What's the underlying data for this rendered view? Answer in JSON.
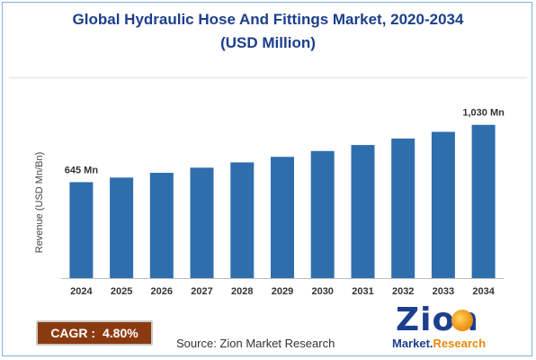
{
  "title_line1": "Global Hydraulic Hose And Fittings Market, 2020-2034",
  "title_line2": "(USD Million)",
  "ylabel": "Revenue (USD Mn/Bn)",
  "cagr": {
    "label": "CAGR :",
    "value": "4.80%"
  },
  "source": "Source: Zion Market Research",
  "logo": {
    "word": "Zion",
    "sub_a": "Market.",
    "sub_b": "Research",
    "icon": "globe-icon"
  },
  "colors": {
    "bar": "#2f6ead",
    "title": "#1b3f8c",
    "cagr_bg": "#8b3a10"
  },
  "chart_data": {
    "type": "bar",
    "title": "Global Hydraulic Hose And Fittings Market, 2020-2034 (USD Million)",
    "ylabel": "Revenue (USD Mn/Bn)",
    "xlabel": "",
    "categories": [
      "2024",
      "2025",
      "2026",
      "2027",
      "2028",
      "2029",
      "2030",
      "2031",
      "2032",
      "2033",
      "2034"
    ],
    "values": [
      645,
      676,
      708,
      742,
      778,
      815,
      854,
      895,
      938,
      983,
      1030
    ],
    "data_labels": [
      {
        "index": 0,
        "text": "645 Mn"
      },
      {
        "index": 10,
        "text": "1,030 Mn"
      }
    ],
    "ylim": [
      0,
      1100
    ],
    "grid": false,
    "legend": "none"
  }
}
